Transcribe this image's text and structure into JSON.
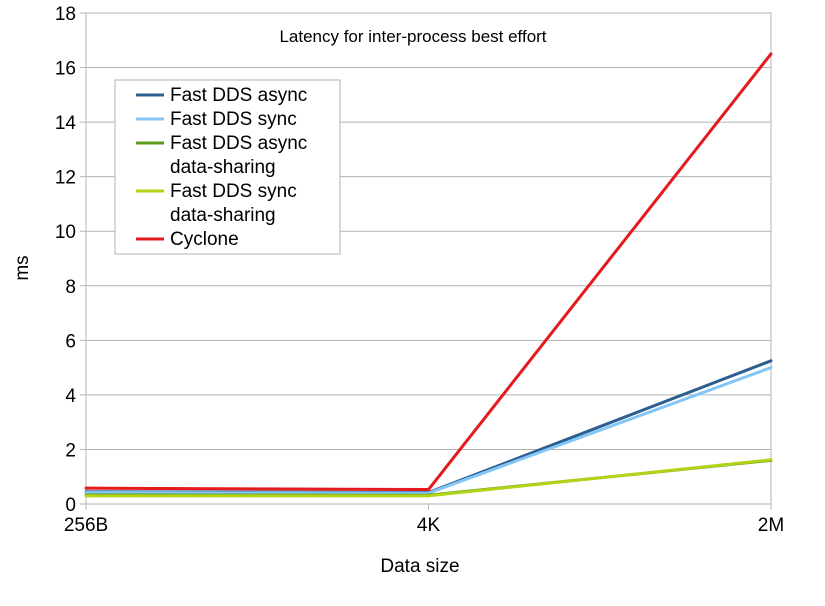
{
  "chart_data": {
    "type": "line",
    "title": "Latency for inter-process best effort",
    "xlabel": "Data size",
    "ylabel": "ms",
    "categories": [
      "256B",
      "4K",
      "2M"
    ],
    "ylim": [
      0,
      18
    ],
    "yticks": [
      0,
      2,
      4,
      6,
      8,
      10,
      12,
      14,
      16,
      18
    ],
    "grid": true,
    "legend_position": "top-left",
    "series": [
      {
        "name": "Fast DDS async",
        "label_lines": [
          "Fast DDS async"
        ],
        "color": "#2c5f8f",
        "values": [
          0.45,
          0.42,
          5.25
        ]
      },
      {
        "name": "Fast DDS sync",
        "label_lines": [
          "Fast DDS sync"
        ],
        "color": "#83c5f5",
        "values": [
          0.42,
          0.4,
          5.0
        ]
      },
      {
        "name": "Fast DDS async data-sharing",
        "label_lines": [
          "Fast DDS async",
          "data-sharing"
        ],
        "color": "#5c9a1b",
        "values": [
          0.33,
          0.32,
          1.6
        ]
      },
      {
        "name": "Fast DDS sync data-sharing",
        "label_lines": [
          "Fast DDS sync",
          "data-sharing"
        ],
        "color": "#b3d317",
        "values": [
          0.3,
          0.3,
          1.62
        ]
      },
      {
        "name": "Cyclone",
        "label_lines": [
          "Cyclone"
        ],
        "color": "#e41a1c",
        "values": [
          0.58,
          0.53,
          16.5
        ]
      }
    ]
  }
}
